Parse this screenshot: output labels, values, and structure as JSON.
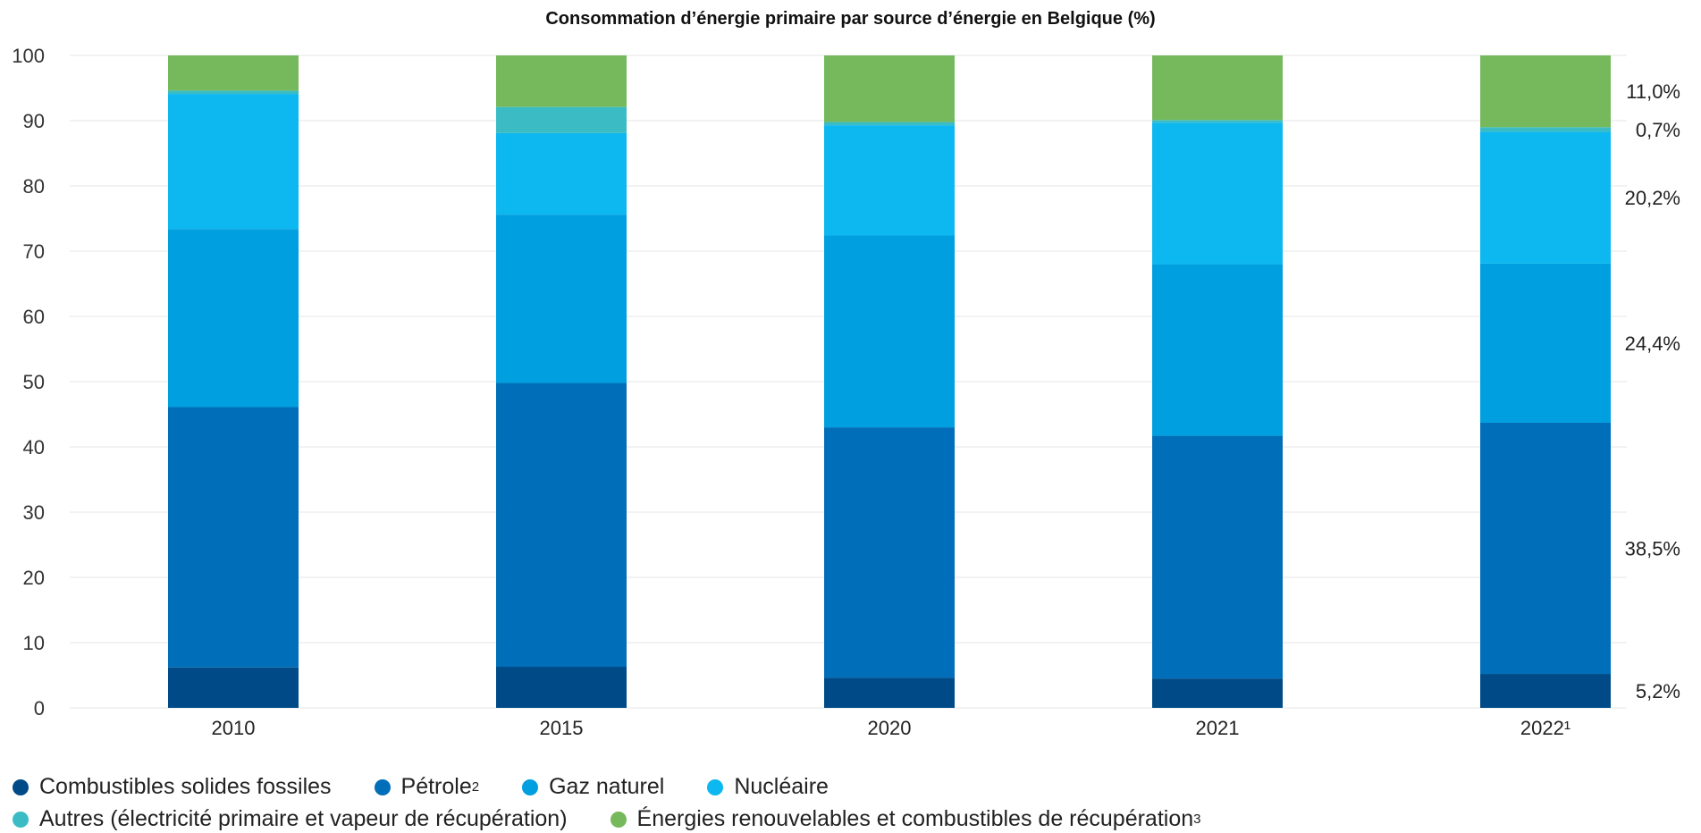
{
  "chart_data": {
    "type": "bar",
    "stacked": true,
    "title": "Consommation d’énergie primaire par source d’énergie en Belgique (%)",
    "xlabel": "",
    "ylabel": "",
    "ylim": [
      0,
      100
    ],
    "yticks": [
      "0",
      "10",
      "20",
      "30",
      "40",
      "50",
      "60",
      "70",
      "80",
      "90",
      "100"
    ],
    "grid": true,
    "legend_position": "bottom",
    "categories": [
      "2010",
      "2015",
      "2020",
      "2021",
      "2022¹"
    ],
    "series": [
      {
        "name": "Combustibles solides fossiles",
        "color": "#004b87",
        "values": [
          6.2,
          6.3,
          4.6,
          4.5,
          5.2
        ]
      },
      {
        "name": "Pétrole",
        "name_sup": "2",
        "color": "#006eb8",
        "values": [
          39.9,
          43.5,
          38.4,
          37.2,
          38.5
        ]
      },
      {
        "name": "Gaz naturel",
        "color": "#009fe0",
        "values": [
          27.3,
          25.8,
          29.4,
          26.3,
          24.4
        ]
      },
      {
        "name": "Nucléaire",
        "color": "#0cb8ef",
        "values": [
          20.7,
          12.5,
          16.9,
          21.7,
          20.2
        ]
      },
      {
        "name": "Autres (électricité primaire et vapeur de récupération)",
        "color": "#3bbcc4",
        "values": [
          0.5,
          4.0,
          0.5,
          0.4,
          0.7
        ]
      },
      {
        "name": "Énergies renouvelables et combustibles de récupération",
        "name_sup": "3",
        "color": "#76b95c",
        "values": [
          5.4,
          7.9,
          10.2,
          9.9,
          11.0
        ]
      }
    ],
    "last_bar_labels": [
      "5,2%",
      "38,5%",
      "24,4%",
      "20,2%",
      "0,7%",
      "11,0%"
    ]
  }
}
